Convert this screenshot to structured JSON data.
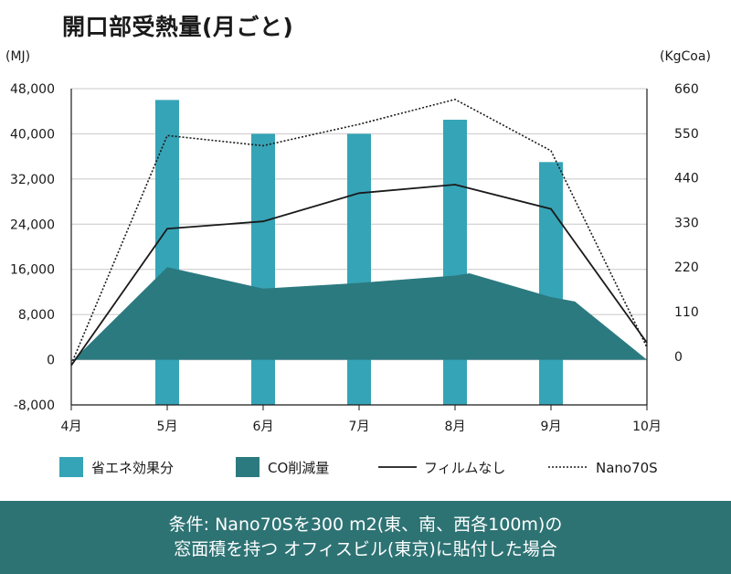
{
  "chart_data": {
    "type": "bar",
    "title": "開口部受熱量(月ごと)",
    "left_axis_unit": "(MJ)",
    "right_axis_unit": "(KgCoa)",
    "categories": [
      "4月",
      "5月",
      "6月",
      "7月",
      "8月",
      "9月",
      "10月"
    ],
    "left_ticks": [
      "48,000",
      "40,000",
      "32,000",
      "24,000",
      "16,000",
      "8,000",
      "0",
      "-8,000"
    ],
    "right_ticks": [
      "660",
      "550",
      "440",
      "330",
      "220",
      "110",
      "0"
    ],
    "ylim": [
      -8000,
      48000
    ],
    "y2lim": [
      -120,
      660
    ],
    "series": [
      {
        "name": "省エネ効果分",
        "type": "bar",
        "axis": "left",
        "color": "#36a4b7",
        "values": [
          null,
          46000,
          40000,
          40000,
          42500,
          35000,
          null
        ]
      },
      {
        "name": "CO削減量",
        "type": "area",
        "axis": "left",
        "color": "#2b7a80",
        "x": [
          0,
          1,
          2,
          3,
          4,
          4.15,
          5,
          5.25,
          6
        ],
        "values": [
          -400,
          16400,
          12600,
          13600,
          14900,
          15300,
          11100,
          10300,
          0
        ]
      },
      {
        "name": "フィルムなし",
        "type": "line",
        "axis": "left",
        "color": "#1a1a1a",
        "values": [
          -1000,
          23200,
          24500,
          29500,
          31000,
          26700,
          3000
        ]
      },
      {
        "name": "Nano70S",
        "type": "line",
        "axis": "left",
        "color": "#1a1a1a",
        "dashed": true,
        "values": [
          -800,
          39700,
          37900,
          41700,
          46100,
          37000,
          2200
        ]
      }
    ]
  },
  "footer": {
    "line1": "条件: Nano70Sを300 m2(東、南、西各100m)の",
    "line2": "窓面積を持つ オフィスビル(東京)に貼付した場合"
  }
}
